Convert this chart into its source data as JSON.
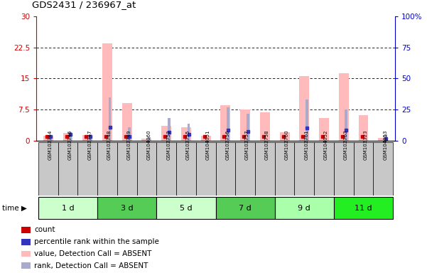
{
  "title": "GDS2431 / 236967_at",
  "samples": [
    "GSM102744",
    "GSM102746",
    "GSM102747",
    "GSM102748",
    "GSM102749",
    "GSM104060",
    "GSM102753",
    "GSM102755",
    "GSM104051",
    "GSM102756",
    "GSM102757",
    "GSM102758",
    "GSM102760",
    "GSM102761",
    "GSM104052",
    "GSM102763",
    "GSM103323",
    "GSM104053"
  ],
  "time_groups": [
    {
      "label": "1 d",
      "start": 0,
      "end": 3,
      "color": "#ccffcc"
    },
    {
      "label": "3 d",
      "start": 3,
      "end": 6,
      "color": "#55cc55"
    },
    {
      "label": "5 d",
      "start": 6,
      "end": 9,
      "color": "#ccffcc"
    },
    {
      "label": "7 d",
      "start": 9,
      "end": 12,
      "color": "#55cc55"
    },
    {
      "label": "9 d",
      "start": 12,
      "end": 15,
      "color": "#aaffaa"
    },
    {
      "label": "11 d",
      "start": 15,
      "end": 18,
      "color": "#22ee22"
    }
  ],
  "pink_bars": [
    1.2,
    1.8,
    1.4,
    23.5,
    9.0,
    0.5,
    3.5,
    3.2,
    1.1,
    8.5,
    7.5,
    6.8,
    2.0,
    15.5,
    5.5,
    16.3,
    6.2,
    0.7
  ],
  "lblue_bars": [
    1.3,
    2.0,
    1.5,
    10.5,
    3.2,
    0.8,
    5.5,
    4.0,
    0.0,
    8.0,
    6.5,
    0.0,
    0.0,
    10.0,
    0.0,
    7.5,
    0.0,
    1.5
  ],
  "red_marks": [
    1.0,
    1.0,
    1.0,
    1.0,
    1.0,
    0.0,
    1.0,
    1.0,
    1.0,
    1.0,
    1.0,
    1.0,
    1.0,
    1.0,
    1.0,
    1.0,
    1.0,
    0.0
  ],
  "blue_marks": [
    1.0,
    1.5,
    1.0,
    3.3,
    1.0,
    0.0,
    2.0,
    1.5,
    0.0,
    2.5,
    2.2,
    0.0,
    0.0,
    3.0,
    0.0,
    2.5,
    0.0,
    0.5
  ],
  "ylim_left": [
    0,
    30
  ],
  "ylim_right": [
    0,
    100
  ],
  "yticks_left": [
    0,
    7.5,
    15,
    22.5,
    30
  ],
  "yticks_right": [
    0,
    25,
    50,
    75,
    100
  ],
  "left_tick_labels": [
    "0",
    "7.5",
    "15",
    "22.5",
    "30"
  ],
  "right_tick_labels": [
    "0",
    "25",
    "50",
    "75",
    "100%"
  ],
  "left_color": "#cc0000",
  "right_color": "#0000cc",
  "pink_color": "#ffbbbb",
  "lblue_color": "#aaaacc",
  "red_color": "#cc0000",
  "blue_color": "#3333bb",
  "gray_color": "#c8c8c8",
  "legend_labels": [
    "count",
    "percentile rank within the sample",
    "value, Detection Call = ABSENT",
    "rank, Detection Call = ABSENT"
  ]
}
